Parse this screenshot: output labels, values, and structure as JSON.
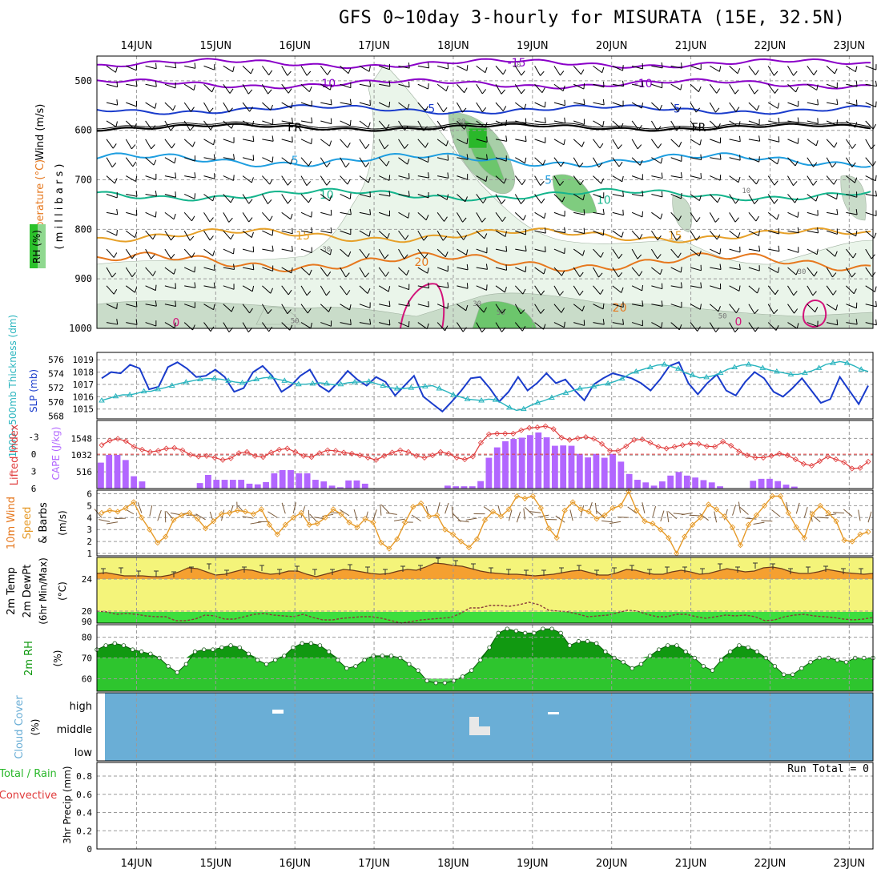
{
  "title": "GFS 0~10day 3-hourly for MISURATA (15E, 32.5N)",
  "date_labels": [
    "14JUN",
    "15JUN",
    "16JUN",
    "17JUN",
    "18JUN",
    "19JUN",
    "20JUN",
    "21JUN",
    "22JUN",
    "23JUN"
  ],
  "colors": {
    "purple": "#8a00c8",
    "blue_dark": "#1a3ccc",
    "blue_light": "#1e9ee0",
    "teal": "#14b48c",
    "orange_light": "#e6a028",
    "orange": "#e6781e",
    "magenta": "#d2147a",
    "cyan": "#28b4be",
    "red": "#e03c3c",
    "violet": "#b266ff",
    "tan": "#e69a28",
    "temp_orange": "#f5a030",
    "dew_green": "#3ede3e",
    "band_yellow": "#f4f47a",
    "rh_green": "#2ec52e",
    "rh_dark": "#119911",
    "cloud_blue": "#6aaed6"
  },
  "chart_data": [
    {
      "id": "upper-air",
      "type": "heatmap",
      "ylabel_parts": [
        "Temperature (°C)",
        "Wind (m/s)"
      ],
      "rh_label": "RH (%)",
      "yaxis_label": "( m i l l i b a r s )",
      "yticks": [
        500,
        600,
        700,
        800,
        900,
        1000
      ],
      "ylim": [
        450,
        1000
      ],
      "isotherm_labels": [
        {
          "text": "-15",
          "level": 463,
          "day": 18.8
        },
        {
          "text": "-10",
          "level": 505,
          "day": 16.4
        },
        {
          "text": "-10",
          "level": 505,
          "day": 20.4
        },
        {
          "text": "-5",
          "level": 556,
          "day": 17.7
        },
        {
          "text": "-5",
          "level": 556,
          "day": 20.8
        },
        {
          "text": "FR",
          "level": 594,
          "day": 16.0
        },
        {
          "text": "FR",
          "level": 594,
          "day": 21.1
        },
        {
          "text": "5",
          "level": 660,
          "day": 16.0
        },
        {
          "text": "5",
          "level": 700,
          "day": 19.2
        },
        {
          "text": "10",
          "level": 730,
          "day": 16.4
        },
        {
          "text": "10",
          "level": 740,
          "day": 19.9
        },
        {
          "text": "15",
          "level": 812,
          "day": 16.1
        },
        {
          "text": "15",
          "level": 812,
          "day": 20.8
        },
        {
          "text": "20",
          "level": 866,
          "day": 17.6
        },
        {
          "text": "20",
          "level": 958,
          "day": 20.1
        },
        {
          "text": "0",
          "level": 988,
          "day": 14.5
        },
        {
          "text": "0",
          "level": 986,
          "day": 21.6
        }
      ],
      "rh_contour_labels": [
        {
          "text": "30",
          "level": 582,
          "day": 18.1
        },
        {
          "text": "30",
          "level": 840,
          "day": 16.4
        },
        {
          "text": "30",
          "level": 950,
          "day": 18.3
        },
        {
          "text": "30",
          "level": 885,
          "day": 22.4
        },
        {
          "text": "50",
          "level": 968,
          "day": 18.6
        },
        {
          "text": "50",
          "level": 975,
          "day": 21.4
        },
        {
          "text": "50",
          "level": 985,
          "day": 16.0
        },
        {
          "text": "10",
          "level": 468,
          "day": 18.8
        },
        {
          "text": "10",
          "level": 722,
          "day": 21.7
        }
      ]
    },
    {
      "id": "slp-thickness",
      "type": "line",
      "ylabel_left": "1000~500mb Thickness (dm)",
      "ylabel_right": "SLP (mb)",
      "yticks_thickness": [
        568,
        570,
        572,
        574,
        576
      ],
      "yticks_slp": [
        1015,
        1016,
        1017,
        1018,
        1019
      ],
      "thickness_ylim": [
        567.6,
        577
      ],
      "slp_ylim": [
        1014.2,
        1019.6
      ],
      "series": [
        {
          "name": "SLP",
          "axis": "slp",
          "values": [
            1017.5,
            1018.0,
            1017.9,
            1018.6,
            1018.3,
            1016.6,
            1016.8,
            1018.4,
            1018.8,
            1018.3,
            1017.6,
            1017.7,
            1018.2,
            1017.6,
            1016.4,
            1016.7,
            1018.0,
            1018.5,
            1017.7,
            1016.4,
            1016.9,
            1017.7,
            1018.2,
            1016.9,
            1016.4,
            1017.2,
            1018.1,
            1017.4,
            1016.9,
            1017.6,
            1017.2,
            1016.1,
            1016.9,
            1017.7,
            1016.0,
            1015.4,
            1014.8,
            1015.6,
            1016.5,
            1017.5,
            1017.6,
            1016.7,
            1015.6,
            1016.4,
            1017.6,
            1016.5,
            1017.1,
            1017.9,
            1017.1,
            1017.4,
            1016.5,
            1015.7,
            1017.0,
            1017.5,
            1017.9,
            1017.7,
            1017.5,
            1017.1,
            1016.5,
            1017.4,
            1018.5,
            1018.8,
            1017.1,
            1016.2,
            1017.1,
            1017.8,
            1016.5,
            1016.1,
            1017.2,
            1018.0,
            1017.5,
            1016.4,
            1016.0,
            1016.7,
            1017.5,
            1016.5,
            1015.5,
            1015.8,
            1017.6,
            1016.5,
            1015.4,
            1016.9
          ]
        },
        {
          "name": "Thickness",
          "axis": "thickness",
          "values": [
            570.2,
            570.5,
            570.8,
            571.0,
            571.0,
            571.2,
            571.5,
            571.5,
            571.8,
            572.0,
            572.3,
            572.6,
            572.8,
            573.0,
            573.2,
            573.3,
            573.3,
            573.2,
            573.0,
            572.8,
            572.7,
            572.9,
            573.2,
            573.4,
            573.5,
            573.2,
            573.0,
            572.7,
            572.5,
            572.5,
            572.6,
            572.7,
            572.6,
            572.4,
            572.5,
            572.7,
            572.8,
            572.8,
            572.9,
            572.6,
            572.3,
            572.0,
            571.9,
            571.9,
            572.0,
            572.1,
            572.2,
            572.3,
            571.9,
            571.5,
            571.0,
            570.7,
            570.4,
            570.3,
            570.2,
            570.4,
            570.3,
            569.8,
            569.2,
            568.8,
            569.0,
            569.5,
            569.9,
            570.2,
            570.6,
            571.0,
            571.3,
            571.6,
            571.9,
            572.0,
            572.2,
            572.4,
            572.6,
            572.9,
            573.3,
            573.9,
            574.3,
            574.6,
            574.9,
            575.2,
            575.3,
            575.0,
            574.7,
            574.1,
            573.8,
            573.4,
            573.5,
            573.7,
            574.1,
            574.6,
            574.9,
            575.2,
            575.3,
            575.1,
            574.8,
            574.5,
            574.3,
            574.1,
            573.9,
            573.9,
            574.1,
            574.4,
            574.8,
            575.3,
            575.5,
            575.7,
            575.5,
            575.1,
            574.6,
            574.3
          ]
        }
      ]
    },
    {
      "id": "cape-li",
      "type": "bar",
      "ylabel_left": "Lifted Index",
      "ylabel_right": "CAPE (J/kg)",
      "yticks_li": [
        "-3",
        "0",
        "3",
        "6"
      ],
      "yticks_cape": [
        516,
        1032,
        1548
      ],
      "li_ylim": [
        6,
        -5.9
      ],
      "cape_ylim": [
        0,
        2100
      ],
      "series": [
        {
          "name": "CAPE",
          "axis": "cape",
          "values": [
            800,
            1040,
            1040,
            880,
            380,
            220,
            0,
            0,
            0,
            0,
            0,
            0,
            170,
            420,
            270,
            270,
            270,
            270,
            150,
            130,
            200,
            470,
            570,
            570,
            470,
            470,
            270,
            220,
            90,
            40,
            250,
            250,
            150,
            0,
            0,
            0,
            0,
            0,
            0,
            0,
            0,
            0,
            90,
            70,
            70,
            70,
            230,
            950,
            1270,
            1460,
            1530,
            1570,
            1650,
            1730,
            1580,
            1320,
            1330,
            1320,
            1070,
            960,
            1070,
            950,
            1070,
            830,
            450,
            270,
            190,
            90,
            220,
            400,
            510,
            400,
            340,
            260,
            190,
            70,
            0,
            0,
            0,
            240,
            300,
            300,
            230,
            120,
            60,
            0,
            0,
            0,
            0,
            0,
            0,
            0,
            0,
            0
          ]
        },
        {
          "name": "Lifted Index",
          "axis": "li",
          "values": [
            -1.6,
            -2.4,
            -2.7,
            -2.3,
            -1.3,
            -0.8,
            -0.4,
            -0.6,
            -1.0,
            -1.1,
            -0.7,
            0.1,
            0.4,
            0.3,
            0.6,
            1.0,
            0.7,
            -0.2,
            -0.4,
            0.3,
            0.5,
            -0.3,
            -0.8,
            -1.0,
            -0.4,
            0.3,
            0.5,
            -0.2,
            -0.7,
            -0.6,
            -0.3,
            -0.1,
            0.2,
            0.6,
            1.0,
            0.3,
            -0.3,
            -0.7,
            -0.4,
            0.3,
            0.6,
            0.2,
            -0.4,
            -0.1,
            0.6,
            0.9,
            0.4,
            -2.0,
            -3.5,
            -3.6,
            -3.6,
            -3.6,
            -4.2,
            -4.6,
            -4.7,
            -4.9,
            -4.4,
            -2.9,
            -2.5,
            -2.8,
            -3.0,
            -2.7,
            -1.8,
            -0.6,
            -0.6,
            -1.4,
            -2.5,
            -2.6,
            -2.0,
            -1.3,
            -1.0,
            -1.3,
            -1.6,
            -1.9,
            -1.8,
            -1.4,
            -1.3,
            -2.2,
            -1.5,
            -0.5,
            0.2,
            0.6,
            0.6,
            0.3,
            -0.1,
            0.2,
            0.9,
            1.7,
            2.0,
            1.2,
            0.4,
            0.9,
            1.4,
            2.5,
            2.4,
            1.3
          ]
        }
      ]
    },
    {
      "id": "wind10m",
      "type": "line",
      "ylabel_parts": [
        "10m Wind",
        "Speed",
        "& Barbs",
        "(m/s)"
      ],
      "yticks": [
        1,
        2,
        3,
        4,
        5,
        6
      ],
      "ylim": [
        0.8,
        6.3
      ],
      "series": [
        {
          "name": "Speed",
          "values": [
            4.4,
            4.6,
            4.5,
            4.8,
            5.3,
            4.0,
            3.0,
            1.9,
            2.4,
            3.8,
            4.2,
            4.4,
            3.9,
            3.1,
            3.7,
            4.3,
            4.4,
            4.6,
            4.5,
            4.3,
            4.7,
            3.4,
            2.6,
            3.4,
            4.0,
            4.4,
            3.4,
            3.5,
            4.0,
            4.7,
            4.3,
            3.6,
            3.2,
            3.9,
            3.6,
            1.9,
            1.4,
            2.2,
            3.6,
            4.9,
            5.2,
            4.1,
            4.2,
            3.0,
            2.6,
            2.0,
            1.5,
            2.2,
            3.8,
            4.5,
            4.1,
            4.7,
            5.8,
            5.6,
            5.8,
            4.8,
            3.1,
            2.3,
            4.6,
            5.3,
            4.7,
            4.5,
            3.9,
            4.2,
            4.8,
            5.0,
            6.2,
            4.6,
            3.7,
            3.5,
            3.0,
            2.3,
            1.0,
            2.4,
            3.4,
            4.0,
            5.1,
            4.7,
            4.1,
            3.2,
            1.7,
            3.4,
            4.2,
            5.0,
            5.8,
            5.8,
            4.4,
            3.2,
            2.3,
            4.3,
            5.0,
            4.4,
            3.7,
            2.1,
            2.0,
            2.6,
            2.8
          ]
        }
      ]
    },
    {
      "id": "temp2m",
      "type": "area",
      "ylabel_parts": [
        "2m Temp",
        "2m DewPt",
        "(6hr Min/Max)",
        "(°C)"
      ],
      "yticks": [
        90,
        20,
        24
      ],
      "ylim": [
        18.5,
        26.7
      ],
      "series": [
        {
          "name": "Temp",
          "values": [
            24.7,
            24.8,
            24.6,
            24.4,
            24.4,
            24.4,
            24.3,
            24.3,
            24.5,
            24.9,
            25.4,
            25.3,
            24.9,
            24.5,
            24.6,
            24.9,
            25.2,
            25.1,
            24.8,
            24.6,
            24.7,
            25.0,
            25.0,
            24.6,
            24.3,
            24.6,
            24.9,
            25.2,
            25.1,
            24.9,
            24.7,
            24.6,
            24.7,
            25.0,
            25.2,
            25.1,
            25.5,
            26.0,
            25.9,
            25.7,
            25.6,
            25.3,
            25.0,
            24.8,
            24.7,
            24.6,
            24.6,
            24.5,
            24.4,
            24.5,
            24.6,
            24.8,
            25.0,
            25.1,
            24.8,
            24.5,
            24.5,
            24.8,
            25.2,
            25.1,
            24.8,
            24.6,
            24.6,
            24.9,
            25.1,
            24.9,
            24.6,
            24.7,
            25.0,
            25.3,
            25.1,
            24.9,
            25.0,
            25.4,
            25.5,
            25.3,
            24.9,
            24.7,
            24.7,
            24.9,
            25.2,
            25.0,
            24.8,
            24.7,
            24.6,
            24.7
          ]
        },
        {
          "name": "DewPt",
          "values": [
            20.0,
            19.9,
            19.6,
            19.7,
            19.6,
            19.4,
            19.3,
            19.3,
            18.8,
            18.8,
            19.0,
            19.5,
            19.4,
            19.0,
            19.0,
            19.3,
            19.6,
            19.7,
            19.5,
            19.4,
            19.3,
            19.6,
            19.2,
            18.9,
            18.9,
            19.1,
            19.2,
            19.3,
            19.3,
            19.1,
            18.8,
            18.5,
            18.7,
            18.9,
            19.0,
            19.1,
            19.2,
            19.7,
            20.4,
            20.4,
            20.7,
            20.7,
            20.6,
            20.8,
            21.1,
            20.8,
            20.1,
            20.0,
            19.9,
            19.6,
            19.3,
            19.4,
            19.5,
            19.8,
            20.1,
            20.0,
            19.6,
            19.3,
            19.3,
            19.6,
            19.6,
            19.3,
            19.1,
            19.3,
            19.5,
            19.4,
            19.5,
            19.3,
            18.8,
            18.9,
            19.3,
            19.5,
            19.6,
            19.4,
            19.3,
            19.2,
            19.0,
            18.9,
            19.0,
            19.2
          ]
        }
      ]
    },
    {
      "id": "rh2m",
      "type": "area",
      "ylabel_parts": [
        "2m RH",
        "(%)"
      ],
      "yticks": [
        60,
        70,
        80
      ],
      "ylim": [
        54,
        86
      ],
      "series": [
        {
          "name": "RH",
          "values": [
            74,
            76,
            77,
            76,
            74,
            73,
            72,
            70,
            66,
            63,
            67,
            73,
            74,
            74,
            75,
            76,
            75,
            72,
            69,
            67,
            69,
            71,
            75,
            77,
            77,
            76,
            73,
            69,
            65,
            66,
            69,
            71,
            71,
            71,
            70,
            67,
            64,
            59,
            58,
            58,
            59,
            61,
            64,
            69,
            75,
            82,
            84,
            83,
            82,
            82,
            84,
            84,
            82,
            76,
            78,
            78,
            77,
            73,
            70,
            68,
            65,
            67,
            71,
            74,
            76,
            76,
            73,
            70,
            66,
            64,
            69,
            73,
            76,
            75,
            73,
            70,
            66,
            62,
            62,
            65,
            68,
            70,
            70,
            69,
            68,
            70,
            70,
            70
          ]
        }
      ]
    },
    {
      "id": "cloud",
      "type": "heatmap",
      "ylabel_parts": [
        "Cloud Cover",
        "(%)"
      ],
      "levels": [
        "high",
        "middle",
        "low"
      ]
    },
    {
      "id": "precip",
      "type": "bar",
      "ylabel_parts": [
        "Total / Rain",
        "Convective",
        "3hr Precip (mm)"
      ],
      "yticks": [
        "0",
        "0.2",
        "0.4",
        "0.6",
        "0.8"
      ],
      "ylim": [
        0,
        0.95
      ],
      "run_total": "Run Total = 0",
      "values": []
    }
  ]
}
